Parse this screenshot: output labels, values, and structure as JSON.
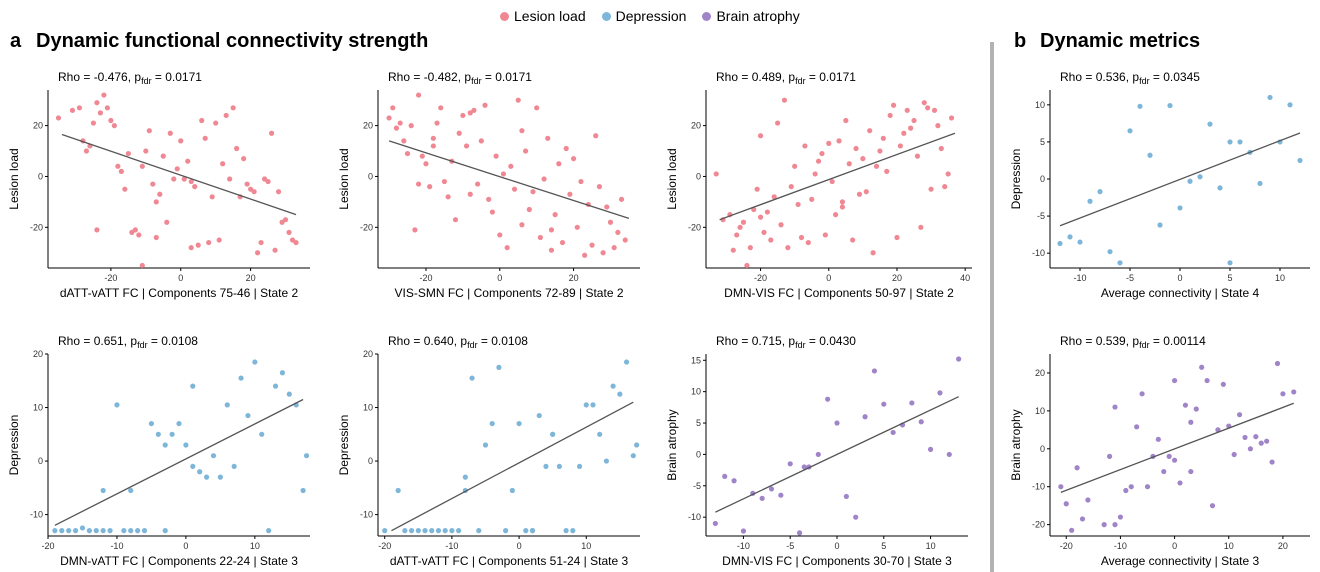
{
  "legend": [
    {
      "label": "Lesion load",
      "color": "#f08894"
    },
    {
      "label": "Depression",
      "color": "#7eb6d9"
    },
    {
      "label": "Brain atrophy",
      "color": "#a084c8"
    }
  ],
  "panels": {
    "a": {
      "letter": "a",
      "title": "Dynamic functional connectivity strength"
    },
    "b": {
      "letter": "b",
      "title": "Dynamic metrics"
    }
  },
  "chart_data": [
    {
      "type": "scatter",
      "stat_prefix": "Rho = -0.476, p",
      "stat_sub": "fdr",
      "stat_suffix": " = 0.0171",
      "xlabel": "dATT-vATT FC | Components 75-46 | State 2",
      "ylabel": "Lesion load",
      "xlim": [
        -38,
        37
      ],
      "ylim": [
        -36,
        34
      ],
      "xticks": [
        -20,
        0,
        20
      ],
      "yticks": [
        -20,
        0,
        20
      ],
      "color": "#f08894",
      "fit": [
        [
          -34,
          16.5
        ],
        [
          33,
          -15
        ]
      ],
      "x": [
        -35,
        -31,
        -29,
        -28,
        -27,
        -26,
        -25,
        -24,
        -23,
        -22,
        -21,
        -20,
        -19,
        -18,
        -17,
        -16,
        -15,
        -14,
        -13,
        -12,
        -11,
        -10,
        -9,
        -8,
        -7,
        -6,
        -5,
        -4,
        -3,
        -2,
        -1,
        0,
        1,
        2,
        3,
        4,
        5,
        6,
        7,
        8,
        9,
        10,
        11,
        12,
        13,
        14,
        15,
        16,
        17,
        18,
        19,
        20,
        21,
        22,
        23,
        24,
        25,
        26,
        27,
        28,
        29,
        30,
        31,
        32,
        33,
        -24,
        -11,
        3,
        -7
      ],
      "y": [
        23,
        26,
        27,
        14,
        10,
        12,
        21,
        29,
        25,
        32,
        27,
        22,
        20,
        4,
        2,
        -5,
        9,
        -22,
        -21,
        -23,
        -35,
        10,
        18,
        -3,
        -10,
        -7,
        8,
        -18,
        17,
        -1,
        3,
        14,
        -1,
        6,
        -2,
        -4,
        -27,
        22,
        15,
        -26,
        -8,
        21,
        -25,
        5,
        24,
        -1,
        27,
        11,
        -8,
        7,
        -3,
        -5,
        -6,
        -30,
        -26,
        -1,
        -2,
        17,
        -29,
        -6,
        -18,
        -17,
        -22,
        -25,
        -26,
        -21,
        4,
        -28,
        -24
      ]
    },
    {
      "type": "scatter",
      "stat_prefix": "Rho = -0.482, p",
      "stat_sub": "fdr",
      "stat_suffix": " = 0.0171",
      "xlabel": "VIS-SMN FC | Components 72-89 | State 2",
      "ylabel": "Lesion load",
      "xlim": [
        -33,
        38
      ],
      "ylim": [
        -36,
        34
      ],
      "xticks": [
        -20,
        0,
        20
      ],
      "yticks": [
        -20,
        0,
        20
      ],
      "color": "#f08894",
      "fit": [
        [
          -30,
          14
        ],
        [
          35,
          -16.5
        ]
      ],
      "x": [
        -30,
        -29,
        -28,
        -27,
        -26,
        -25,
        -24,
        -23,
        -22,
        -21,
        -20,
        -19,
        -18,
        -17,
        -16,
        -15,
        -14,
        -13,
        -12,
        -11,
        -10,
        -9,
        -8,
        -7,
        -6,
        -5,
        -4,
        -3,
        -2,
        -1,
        0,
        1,
        2,
        3,
        4,
        5,
        6,
        7,
        8,
        9,
        10,
        11,
        12,
        13,
        14,
        15,
        16,
        17,
        18,
        19,
        20,
        21,
        22,
        23,
        24,
        25,
        26,
        27,
        28,
        29,
        30,
        31,
        32,
        33,
        34,
        -22,
        -8,
        6,
        14,
        -18
      ],
      "y": [
        23,
        27,
        19,
        21,
        14,
        9,
        20,
        -21,
        32,
        8,
        5,
        -4,
        15,
        21,
        27,
        -2,
        -8,
        6,
        -17,
        17,
        24,
        12,
        -7,
        26,
        -3,
        14,
        28,
        -9,
        -14,
        8,
        -23,
        1,
        -28,
        4,
        -5,
        30,
        18,
        10,
        -13,
        -6,
        27,
        -24,
        -1,
        15,
        -29,
        -15,
        5,
        -26,
        11,
        -7,
        7,
        -20,
        -2,
        -31,
        -11,
        -27,
        16,
        -4,
        -30,
        -12,
        -18,
        -28,
        -22,
        -9,
        -25,
        -3,
        25,
        -19,
        -21,
        12
      ]
    },
    {
      "type": "scatter",
      "stat_prefix": "Rho = 0.489, p",
      "stat_sub": "fdr",
      "stat_suffix": " = 0.0171",
      "xlabel": "DMN-VIS FC | Components 50-97 | State 2",
      "ylabel": "Lesion load",
      "xlim": [
        -36,
        42
      ],
      "ylim": [
        -36,
        34
      ],
      "xticks": [
        -20,
        0,
        20,
        40
      ],
      "yticks": [
        -20,
        0,
        20
      ],
      "color": "#f08894",
      "fit": [
        [
          -32,
          -17
        ],
        [
          37,
          17
        ]
      ],
      "x": [
        -33,
        -31,
        -29,
        -28,
        -27,
        -26,
        -25,
        -24,
        -23,
        -22,
        -21,
        -20,
        -19,
        -18,
        -17,
        -16,
        -15,
        -14,
        -13,
        -12,
        -11,
        -10,
        -9,
        -8,
        -7,
        -6,
        -5,
        -4,
        -3,
        -2,
        -1,
        0,
        1,
        2,
        3,
        4,
        5,
        6,
        7,
        8,
        9,
        10,
        11,
        12,
        13,
        14,
        15,
        16,
        17,
        18,
        19,
        20,
        21,
        22,
        23,
        24,
        25,
        26,
        27,
        28,
        29,
        30,
        31,
        32,
        33,
        34,
        35,
        36,
        -20,
        4
      ],
      "y": [
        1,
        -17,
        -15,
        -29,
        -23,
        -20,
        -18,
        -35,
        -28,
        -13,
        -5,
        16,
        -22,
        -14,
        -25,
        -8,
        21,
        -19,
        30,
        -28,
        -4,
        4,
        -11,
        -24,
        12,
        -26,
        -9,
        1,
        6,
        9,
        -23,
        13,
        -2,
        -15,
        14,
        -10,
        22,
        5,
        -25,
        11,
        -7,
        7,
        -6,
        18,
        -30,
        4,
        10,
        15,
        2,
        24,
        28,
        -24,
        12,
        17,
        26,
        19,
        22,
        8,
        -20,
        29,
        27,
        -5,
        26,
        20,
        11,
        -4,
        1,
        23,
        -16,
        -12
      ]
    },
    {
      "type": "scatter",
      "stat_prefix": "Rho = 0.536, p",
      "stat_sub": "fdr",
      "stat_suffix": " = 0.0345",
      "xlabel": "Average connectivity | State 4",
      "ylabel": "Depression",
      "xlim": [
        -13,
        13
      ],
      "ylim": [
        -12,
        12
      ],
      "xticks": [
        -10,
        -5,
        0,
        5,
        10
      ],
      "yticks": [
        -10,
        -5,
        0,
        5,
        10
      ],
      "color": "#7eb6d9",
      "fit": [
        [
          -12,
          -6.3
        ],
        [
          12,
          6.2
        ]
      ],
      "x": [
        -12,
        -11,
        -10,
        -9,
        -8,
        -7,
        -6,
        -4,
        -3,
        -2,
        -1,
        0,
        1,
        2,
        3,
        4,
        5,
        6,
        7,
        8,
        9,
        10,
        11,
        12,
        -5,
        5
      ],
      "y": [
        -8.7,
        -7.8,
        -8.5,
        -3,
        -1.7,
        -9.8,
        -11.3,
        9.8,
        3.2,
        -6.2,
        9.9,
        -3.9,
        -0.3,
        0.3,
        7.4,
        -1.2,
        5,
        5,
        3.6,
        -0.6,
        11,
        5,
        10,
        2.5,
        6.5,
        -11.3
      ]
    },
    {
      "type": "scatter",
      "stat_prefix": "Rho = 0.651, p",
      "stat_sub": "fdr",
      "stat_suffix": " = 0.0108",
      "xlabel": "DMN-vATT FC | Components 22-24 | State 3",
      "ylabel": "Depression",
      "xlim": [
        -20,
        18
      ],
      "ylim": [
        -14,
        20
      ],
      "xticks": [
        -20,
        -10,
        0,
        10
      ],
      "yticks": [
        -10,
        0,
        10,
        20
      ],
      "color": "#7eb6d9",
      "fit": [
        [
          -19,
          -12
        ],
        [
          17,
          11.5
        ]
      ],
      "x": [
        -19,
        -18,
        -17,
        -16,
        -15,
        -14,
        -13,
        -12,
        -11,
        -10,
        -9,
        -8,
        -7,
        -6,
        -5,
        -4,
        -3,
        -2,
        -1,
        0,
        1,
        2,
        3,
        4,
        5,
        6,
        7,
        8,
        9,
        10,
        11,
        12,
        13,
        14,
        15,
        16,
        17,
        17.5,
        -12,
        -8,
        -3,
        1
      ],
      "y": [
        -13,
        -13,
        -13,
        -13,
        -12.5,
        -13,
        -13,
        -13,
        -13,
        10.5,
        -13,
        -13,
        -13,
        -13,
        7,
        5,
        3,
        5,
        7,
        3,
        14,
        -2,
        -3,
        1,
        -3,
        10.5,
        -1,
        15.5,
        8.5,
        18.5,
        5,
        -13,
        14,
        16.5,
        12.5,
        10.5,
        -5.5,
        1,
        -5.5,
        -5.5,
        -13,
        -1
      ]
    },
    {
      "type": "scatter",
      "stat_prefix": "Rho = 0.640, p",
      "stat_sub": "fdr",
      "stat_suffix": " = 0.0108",
      "xlabel": "dATT-vATT FC | Components 51-24 | State 3",
      "ylabel": "Depression",
      "xlim": [
        -21,
        18
      ],
      "ylim": [
        -14,
        20
      ],
      "xticks": [
        -20,
        -10,
        0,
        10
      ],
      "yticks": [
        -10,
        0,
        10,
        20
      ],
      "color": "#7eb6d9",
      "fit": [
        [
          -19,
          -13
        ],
        [
          17,
          11
        ]
      ],
      "x": [
        -20,
        -18,
        -17,
        -16,
        -15,
        -14,
        -13,
        -12,
        -11,
        -10,
        -9,
        -8,
        -7,
        -6,
        -5,
        -4,
        -3,
        -2,
        -1,
        0,
        1,
        2,
        3,
        4,
        5,
        6,
        7,
        8,
        9,
        10,
        11,
        12,
        13,
        14,
        15,
        16,
        17,
        17.5,
        -8,
        2,
        5
      ],
      "y": [
        -13,
        -5.5,
        -13,
        -13,
        -13,
        -13,
        -13,
        -13,
        -13,
        -13,
        -13,
        -3,
        15.5,
        -13,
        3,
        7,
        17.5,
        -13,
        -5.5,
        7,
        -13,
        -13,
        8.5,
        -1,
        5,
        -1,
        -13,
        -13,
        -1,
        10.5,
        10.5,
        5,
        0,
        14,
        12.5,
        18.5,
        1,
        3,
        -5.5,
        -13,
        5
      ]
    },
    {
      "type": "scatter",
      "stat_prefix": "Rho = 0.715, p",
      "stat_sub": "fdr",
      "stat_suffix": " = 0.0430",
      "xlabel": "DMN-VIS FC | Components 30-70 | State 3",
      "ylabel": "Brain atrophy",
      "xlim": [
        -14,
        14
      ],
      "ylim": [
        -13,
        16
      ],
      "xticks": [
        -10,
        -5,
        0,
        5,
        10
      ],
      "yticks": [
        -10,
        -5,
        0,
        5,
        10,
        15
      ],
      "color": "#a084c8",
      "fit": [
        [
          -13,
          -9.2
        ],
        [
          13,
          9.2
        ]
      ],
      "x": [
        -13,
        -12,
        -11,
        -10,
        -9,
        -8,
        -7,
        -6,
        -5,
        -4,
        -3,
        -2,
        -1,
        0,
        1,
        2,
        3,
        4,
        5,
        6,
        7,
        8,
        9,
        10,
        11,
        12,
        13,
        -3.5
      ],
      "y": [
        -11,
        -3.5,
        -4.2,
        -12.2,
        -6.2,
        -7,
        -5.5,
        -6.5,
        -1.5,
        -12.5,
        -2,
        0,
        8.8,
        5,
        -6.7,
        -10,
        6,
        13.3,
        8,
        3.5,
        4.7,
        8.2,
        5.2,
        0.8,
        9.8,
        0,
        15.2,
        -2
      ]
    },
    {
      "type": "scatter",
      "stat_prefix": "Rho = 0.539, p",
      "stat_sub": "fdr",
      "stat_suffix": " = 0.00114",
      "xlabel": "Average connectivity | State 3",
      "ylabel": "Brain atrophy",
      "xlim": [
        -23,
        25
      ],
      "ylim": [
        -23,
        25
      ],
      "xticks": [
        -20,
        -10,
        0,
        10,
        20
      ],
      "yticks": [
        -20,
        -10,
        0,
        10,
        20
      ],
      "color": "#a084c8",
      "fit": [
        [
          -21,
          -11.5
        ],
        [
          22,
          12
        ]
      ],
      "x": [
        -21,
        -20,
        -19,
        -18,
        -17,
        -16,
        -13,
        -12,
        -11,
        -10,
        -9,
        -8,
        -7,
        -6,
        -5,
        -4,
        -3,
        -2,
        -1,
        0,
        1,
        2,
        3,
        4,
        5,
        6,
        7,
        8,
        9,
        10,
        11,
        12,
        13,
        14,
        15,
        16,
        17,
        18,
        19,
        20,
        22,
        -11,
        0,
        3
      ],
      "y": [
        -10,
        -14.5,
        -21.5,
        -5,
        -18.5,
        -13.5,
        -20,
        -2,
        11,
        -18,
        -11,
        -10,
        5.8,
        14.5,
        -10,
        -2,
        2.5,
        -6,
        -2,
        18,
        -9,
        11.5,
        7,
        10.5,
        21.5,
        18,
        -15,
        5,
        17,
        6,
        -1.5,
        9,
        3,
        0,
        3.2,
        1.5,
        2,
        -3.5,
        22.5,
        14.5,
        15,
        -20,
        -3,
        -6
      ]
    }
  ]
}
